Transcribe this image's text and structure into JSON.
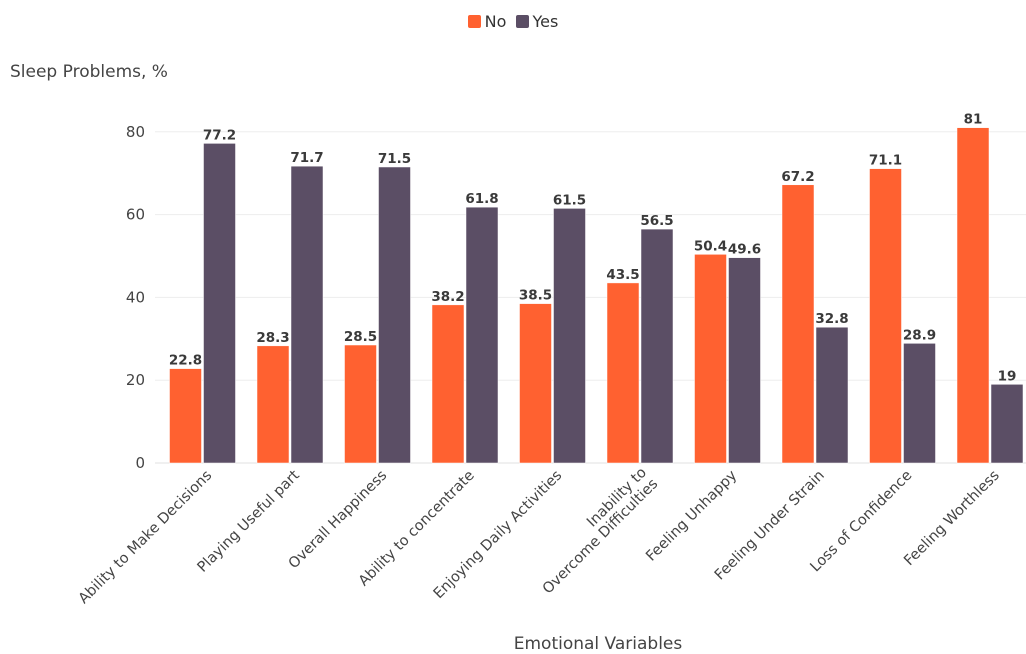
{
  "chart_data": {
    "type": "bar",
    "xlabel": "Emotional Variables",
    "ylabel": "Sleep Problems, %",
    "ylim": [
      0,
      90
    ],
    "yticks": [
      0,
      20,
      40,
      60,
      80
    ],
    "grid": true,
    "legend_position": "top-center",
    "categories": [
      "Ability to Make Decisions",
      "Playing Useful part",
      "Overall Happiness",
      "Ability to concentrate",
      "Enjoying Daily Activities",
      "Inability to Overcome Difficulties",
      "Feeling Unhappy",
      "Feeling Under Strain",
      "Loss of Confidence",
      "Feeling Worthless"
    ],
    "series": [
      {
        "name": "No",
        "color": "#ff6130",
        "values": [
          22.8,
          28.3,
          28.5,
          38.2,
          38.5,
          43.5,
          50.4,
          67.2,
          71.1,
          81
        ]
      },
      {
        "name": "Yes",
        "color": "#5b4e65",
        "values": [
          77.2,
          71.7,
          71.5,
          61.8,
          61.5,
          56.5,
          49.6,
          32.8,
          28.9,
          19
        ]
      }
    ]
  }
}
